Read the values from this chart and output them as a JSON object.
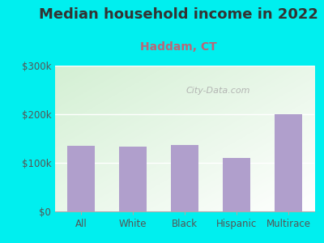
{
  "title": "Median household income in 2022",
  "subtitle": "Haddam, CT",
  "categories": [
    "All",
    "White",
    "Black",
    "Hispanic",
    "Multirace"
  ],
  "values": [
    135000,
    133000,
    137000,
    110000,
    200000
  ],
  "bar_color": "#b09fcc",
  "background_outer": "#00efef",
  "title_color": "#333333",
  "subtitle_color": "#bb6677",
  "tick_color": "#555555",
  "ytick_label_color": "#555555",
  "ylim": [
    0,
    300000
  ],
  "yticks": [
    0,
    100000,
    200000,
    300000
  ],
  "ytick_labels": [
    "$0",
    "$100k",
    "$200k",
    "$300k"
  ],
  "watermark": "City-Data.com",
  "title_fontsize": 13,
  "subtitle_fontsize": 10,
  "bar_width": 0.52
}
